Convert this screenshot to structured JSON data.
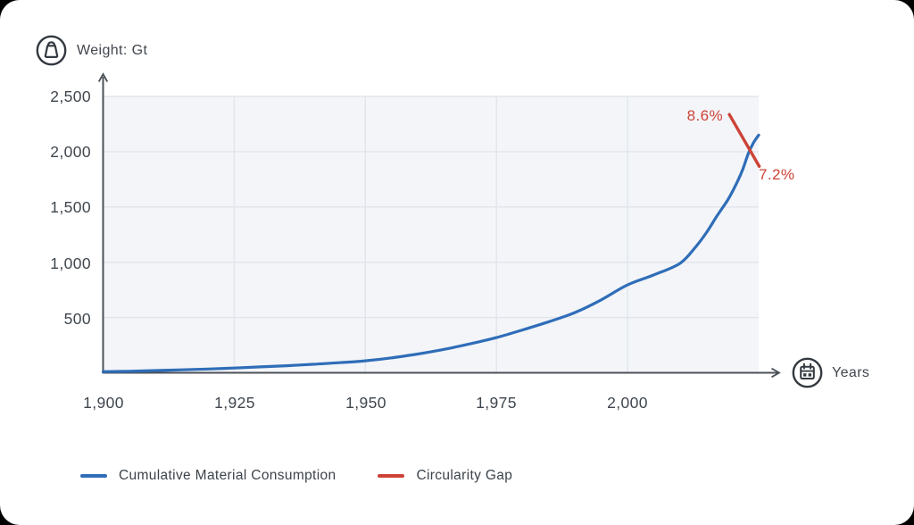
{
  "header": {
    "y_axis_title": "Weight: Gt",
    "x_axis_title": "Years"
  },
  "chart_data": {
    "type": "line",
    "title": "",
    "xlabel": "Years",
    "ylabel": "Weight: Gt",
    "xlim": [
      1900,
      2025
    ],
    "ylim": [
      0,
      2500
    ],
    "grid": true,
    "plot_bg": "#f3f5f9",
    "grid_color": "#e1e5eb",
    "axis_color": "#4c5258",
    "series": [
      {
        "name": "Cumulative Material Consumption",
        "color": "#2f6db8",
        "points": [
          [
            1900,
            10
          ],
          [
            1905,
            14
          ],
          [
            1910,
            20
          ],
          [
            1915,
            27
          ],
          [
            1920,
            34
          ],
          [
            1925,
            43
          ],
          [
            1930,
            53
          ],
          [
            1935,
            64
          ],
          [
            1940,
            77
          ],
          [
            1945,
            91
          ],
          [
            1950,
            108
          ],
          [
            1955,
            135
          ],
          [
            1960,
            170
          ],
          [
            1965,
            212
          ],
          [
            1970,
            262
          ],
          [
            1975,
            318
          ],
          [
            1980,
            388
          ],
          [
            1985,
            462
          ],
          [
            1990,
            545
          ],
          [
            1995,
            660
          ],
          [
            2000,
            795
          ],
          [
            2005,
            885
          ],
          [
            2010,
            990
          ],
          [
            2013,
            1140
          ],
          [
            2015,
            1265
          ],
          [
            2017,
            1415
          ],
          [
            2019,
            1555
          ],
          [
            2020,
            1640
          ],
          [
            2021,
            1735
          ],
          [
            2022,
            1845
          ],
          [
            2023,
            1980
          ],
          [
            2024,
            2080
          ],
          [
            2025,
            2150
          ]
        ]
      }
    ],
    "annotation": {
      "name": "Circularity Gap",
      "color": "#cd4337",
      "line": {
        "from": [
          2019.4,
          2337
        ],
        "to": [
          2025.1,
          1868
        ]
      },
      "label_start": "8.6%",
      "label_end": "7.2%"
    },
    "yticks": [
      {
        "label": "2,500",
        "value": 2500
      },
      {
        "label": "2,000",
        "value": 2000
      },
      {
        "label": "1,500",
        "value": 1500
      },
      {
        "label": "1,000",
        "value": 1000
      },
      {
        "label": "500",
        "value": 500
      }
    ],
    "xticks": [
      {
        "label": "1,900",
        "value": 1900
      },
      {
        "label": "1,925",
        "value": 1925
      },
      {
        "label": "1,950",
        "value": 1950
      },
      {
        "label": "1,975",
        "value": 1975
      },
      {
        "label": "2,000",
        "value": 2000
      }
    ]
  },
  "legend": {
    "items": [
      {
        "label": "Cumulative Material Consumption",
        "color": "#2f6db8"
      },
      {
        "label": "Circularity Gap",
        "color": "#cd4337"
      }
    ]
  }
}
